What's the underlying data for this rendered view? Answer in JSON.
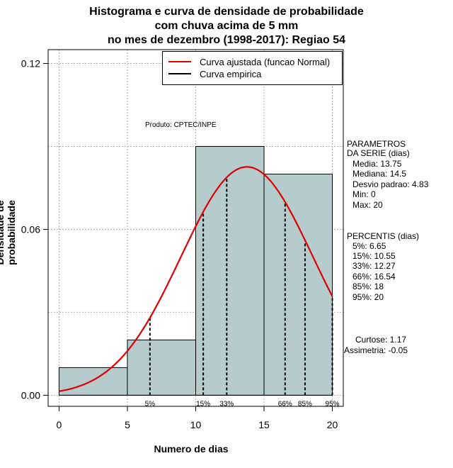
{
  "title": {
    "line1": "Histograma e curva de densidade de probabilidade",
    "line2": "com chuva acima de 5 mm",
    "line3": "no mes de dezembro (1998-2017): Regiao 54"
  },
  "product_label": "Produto: CPTEC/INPE",
  "legend": {
    "fitted": "Curva ajustada (funcao Normal)",
    "empirical": "Curva empirica"
  },
  "parameters": {
    "heading1": "PARAMETROS",
    "heading2": "DA SERIE (dias)",
    "media": "Media: 13.75",
    "mediana": "Mediana: 14.5",
    "desvio": "Desvio padrao: 4.83",
    "min": "Min: 0",
    "max": "Max: 20"
  },
  "percentis": {
    "heading": "PERCENTIS (dias)",
    "p5": "5%: 6.65",
    "p15": "15%: 10.55",
    "p33": "33%: 12.27",
    "p66": "66%: 16.54",
    "p85": "85%: 18",
    "p95": "95%: 20"
  },
  "shape": {
    "curtose": "Curtose: 1.17",
    "assimetria": "Assimetria: -0.05"
  },
  "colors": {
    "bar_fill": "#b6cccc",
    "fitted_curve": "#e00000",
    "grid": "#b0b0b0"
  },
  "chart_data": {
    "type": "bar",
    "title": "Histograma e curva de densidade de probabilidade com chuva acima de 5 mm no mes de dezembro (1998-2017): Regiao 54",
    "xlabel": "Numero de dias",
    "ylabel": "Densidade de probabilidade",
    "xlim": [
      -0.8,
      20.8
    ],
    "ylim": [
      -0.004,
      0.125
    ],
    "x_ticks": [
      0,
      5,
      10,
      15,
      20
    ],
    "x_tick_labels": [
      "0",
      "5",
      "10",
      "15",
      "20"
    ],
    "y_ticks": [
      0.0,
      0.06,
      0.12
    ],
    "y_tick_labels": [
      "0.00",
      "0.06",
      "0.12"
    ],
    "grid": true,
    "legend_placement": "top-right",
    "bins": [
      {
        "from": 0,
        "to": 5,
        "density": 0.01
      },
      {
        "from": 5,
        "to": 10,
        "density": 0.02
      },
      {
        "from": 10,
        "to": 15,
        "density": 0.09
      },
      {
        "from": 15,
        "to": 20,
        "density": 0.08
      }
    ],
    "fitted_normal": {
      "mean": 13.75,
      "sd": 4.83
    },
    "percentile_lines": [
      {
        "label": "5%",
        "x": 6.65
      },
      {
        "label": "15%",
        "x": 10.55
      },
      {
        "label": "33%",
        "x": 12.27
      },
      {
        "label": "66%",
        "x": 16.54
      },
      {
        "label": "85%",
        "x": 18
      },
      {
        "label": "95%",
        "x": 20
      }
    ]
  }
}
